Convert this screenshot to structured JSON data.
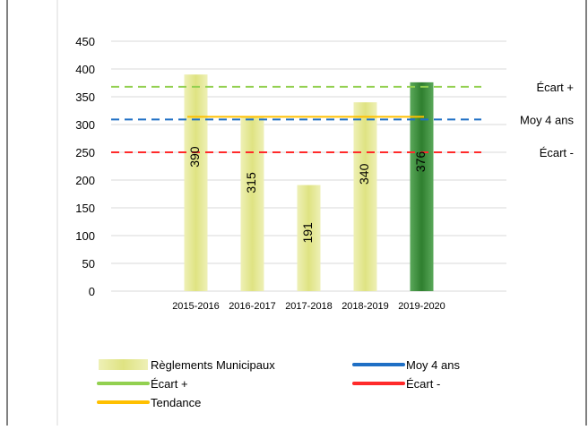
{
  "chart_data": {
    "type": "bar",
    "title": "",
    "categories": [
      "2015-2016",
      "2016-2017",
      "2017-2018",
      "2018-2019",
      "2019-2020"
    ],
    "series": [
      {
        "name": "Règlements Municipaux",
        "values": [
          390,
          315,
          191,
          340,
          376
        ],
        "colors": [
          "#e1e48a",
          "#e1e48a",
          "#e1e48a",
          "#e1e48a",
          "#3f8f3f"
        ]
      }
    ],
    "reference_lines": [
      {
        "name": "Écart +",
        "value": 368,
        "color": "#92d050",
        "style": "dashed",
        "label": "Écart +"
      },
      {
        "name": "Moy 4 ans",
        "value": 309,
        "color": "#1f6fc5",
        "style": "dashed",
        "label": "Moy 4 ans"
      },
      {
        "name": "Écart -",
        "value": 250,
        "color": "#ff2a2a",
        "style": "dashed",
        "label": "Écart -"
      },
      {
        "name": "Tendance",
        "value": 314,
        "color": "#ffc000",
        "style": "solid",
        "label": ""
      }
    ],
    "ylim": [
      0,
      450
    ],
    "yticks": [
      "0",
      "50",
      "100",
      "150",
      "200",
      "250",
      "300",
      "350",
      "400",
      "450"
    ],
    "grid": true,
    "legend_position": "bottom",
    "legend": [
      {
        "label": "Règlements Municipaux",
        "color": "#e1e48a",
        "kind": "bar"
      },
      {
        "label": "Moy 4 ans",
        "color": "#1f6fc5",
        "kind": "line"
      },
      {
        "label": "Écart +",
        "color": "#92d050",
        "kind": "line"
      },
      {
        "label": "Écart -",
        "color": "#ff2a2a",
        "kind": "line"
      },
      {
        "label": "Tendance",
        "color": "#ffc000",
        "kind": "line"
      }
    ]
  }
}
